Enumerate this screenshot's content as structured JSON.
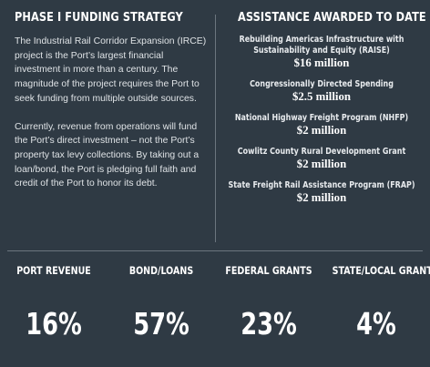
{
  "left": {
    "heading": "PHASE I FUNDING STRATEGY",
    "paragraphs": [
      "The Industrial Rail Corridor Expansion (IRCE) project is the Port’s largest financial investment in more than a century. The magnitude of the project requires the Port to seek funding from multiple outside sources.",
      "Currently, revenue from operations will fund the Port’s direct investment – not the Port’s property tax levy collections.  By taking out a loan/bond, the Port is pledging full faith and credit of the Port to honor its debt."
    ]
  },
  "right": {
    "heading": "ASSISTANCE AWARDED TO DATE",
    "awards": [
      {
        "name": "Rebuilding Americas Infrastructure with Sustainability and Equity (RAISE)",
        "amount": "$16 million"
      },
      {
        "name": "Congressionally Directed Spending",
        "amount": "$2.5 million"
      },
      {
        "name": "National Highway Freight Program (NHFP)",
        "amount": "$2 million"
      },
      {
        "name": "Cowlitz County Rural Development Grant",
        "amount": "$2 million"
      },
      {
        "name": "State Freight Rail Assistance Program (FRAP)",
        "amount": "$2 million"
      }
    ]
  },
  "stats": [
    {
      "label": "PORT REVENUE",
      "value": "16%"
    },
    {
      "label": "BOND/LOANS",
      "value": "57%"
    },
    {
      "label": "FEDERAL GRANTS",
      "value": "23%"
    },
    {
      "label": "STATE/LOCAL GRANTS",
      "value": "4%"
    }
  ],
  "colors": {
    "background": "#2f3a44",
    "divider": "#6b757e",
    "text": "#ffffff"
  }
}
